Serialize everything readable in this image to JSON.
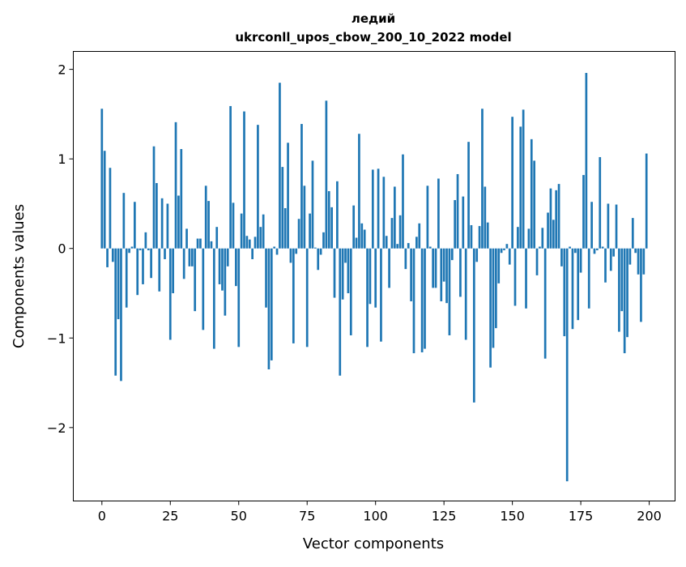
{
  "chart_data": {
    "type": "bar",
    "title_line1": "ледий",
    "title_line2": "ukrconll_upos_cbow_200_10_2022 model",
    "xlabel": "Vector components",
    "ylabel": "Components values",
    "xlim": [
      -10.45,
      209.45
    ],
    "ylim": [
      -2.82,
      2.2
    ],
    "xticks": [
      0,
      25,
      50,
      75,
      100,
      125,
      150,
      175,
      200
    ],
    "xtick_labels": [
      "0",
      "25",
      "50",
      "75",
      "100",
      "125",
      "150",
      "175",
      "200"
    ],
    "yticks": [
      2,
      1,
      0,
      -1,
      -2
    ],
    "ytick_labels": [
      "2",
      "1",
      "0",
      "−1",
      "−2"
    ],
    "grid": false,
    "bar_color": "#1f77b4",
    "values": [
      1.56,
      1.09,
      -0.21,
      0.9,
      -0.15,
      -1.42,
      -0.79,
      -1.48,
      0.62,
      -0.66,
      -0.05,
      0.02,
      0.52,
      -0.52,
      -0.02,
      -0.4,
      0.18,
      -0.02,
      -0.33,
      1.14,
      0.73,
      -0.48,
      0.56,
      -0.12,
      0.5,
      -1.02,
      -0.5,
      1.41,
      0.59,
      1.11,
      -0.34,
      0.22,
      -0.2,
      -0.2,
      -0.7,
      0.11,
      0.11,
      -0.91,
      0.7,
      0.53,
      0.08,
      -1.12,
      0.24,
      -0.4,
      -0.47,
      -0.75,
      -0.2,
      1.59,
      0.51,
      -0.42,
      -1.1,
      0.39,
      1.53,
      0.14,
      0.1,
      -0.12,
      0.13,
      1.38,
      0.24,
      0.38,
      -0.66,
      -1.35,
      -1.25,
      0.02,
      -0.07,
      1.85,
      0.91,
      0.45,
      1.18,
      -0.16,
      -1.06,
      -0.06,
      0.33,
      1.39,
      0.7,
      -1.1,
      0.39,
      0.98,
      0.01,
      -0.24,
      -0.07,
      0.18,
      1.65,
      0.64,
      0.46,
      -0.55,
      0.75,
      -1.42,
      -0.57,
      -0.16,
      -0.5,
      -0.97,
      0.48,
      0.12,
      1.28,
      0.28,
      0.21,
      -1.1,
      -0.62,
      0.88,
      -0.66,
      0.89,
      -1.04,
      0.8,
      0.14,
      -0.44,
      0.34,
      0.69,
      0.05,
      0.37,
      1.05,
      -0.23,
      0.06,
      -0.59,
      -1.17,
      0.13,
      0.28,
      -1.16,
      -1.12,
      0.7,
      0.02,
      -0.44,
      -0.44,
      0.78,
      -0.59,
      -0.37,
      -0.61,
      -0.97,
      -0.13,
      0.54,
      0.83,
      -0.54,
      0.58,
      -1.02,
      1.19,
      0.26,
      -1.72,
      -0.15,
      0.25,
      1.56,
      0.69,
      0.29,
      -1.33,
      -1.11,
      -0.89,
      -0.39,
      -0.05,
      -0.02,
      0.05,
      -0.18,
      1.47,
      -0.64,
      0.24,
      1.36,
      1.55,
      -0.67,
      0.22,
      1.22,
      0.98,
      -0.3,
      0.02,
      0.23,
      -1.23,
      0.4,
      0.67,
      0.32,
      0.65,
      0.72,
      -0.2,
      -0.98,
      -2.6,
      0.02,
      -0.9,
      -0.05,
      -0.8,
      -0.27,
      0.82,
      1.96,
      -0.67,
      0.52,
      -0.06,
      -0.02,
      1.02,
      0.02,
      -0.38,
      0.5,
      -0.25,
      -0.09,
      0.49,
      -0.93,
      -0.7,
      -1.17,
      -0.99,
      -0.18,
      0.34,
      -0.05,
      -0.29,
      -0.82,
      -0.29,
      1.06
    ]
  }
}
